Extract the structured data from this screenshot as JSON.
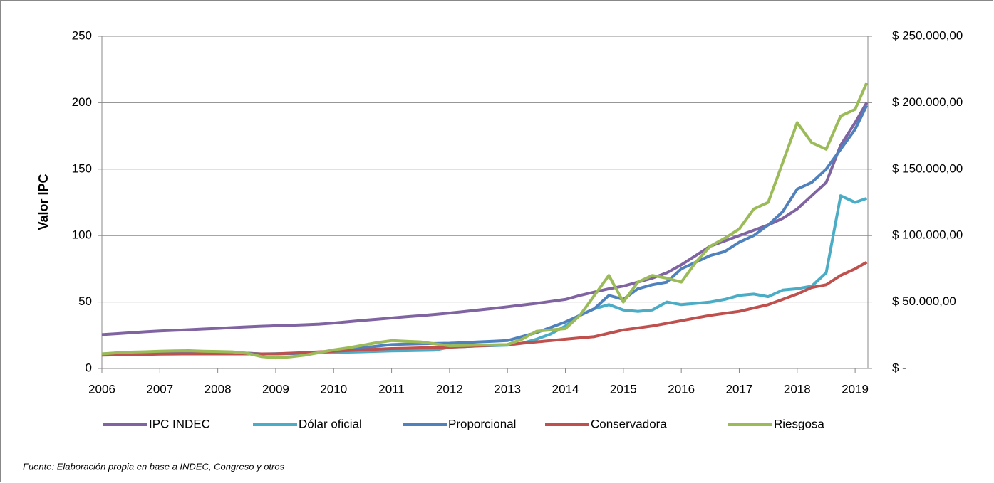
{
  "chart_data": {
    "type": "line",
    "y_label": "Valor IPC",
    "source": "Fuente: Elaboración propia en base a INDEC, Congreso y otros",
    "x": [
      2006,
      2006.25,
      2006.5,
      2006.75,
      2007,
      2007.25,
      2007.5,
      2007.75,
      2008,
      2008.25,
      2008.5,
      2008.75,
      2009,
      2009.25,
      2009.5,
      2009.75,
      2010,
      2010.25,
      2010.5,
      2010.75,
      2011,
      2011.25,
      2011.5,
      2011.75,
      2012,
      2012.25,
      2012.5,
      2012.75,
      2013,
      2013.25,
      2013.5,
      2013.75,
      2014,
      2014.25,
      2014.5,
      2014.75,
      2015,
      2015.25,
      2015.5,
      2015.75,
      2016,
      2016.25,
      2016.5,
      2016.75,
      2017,
      2017.25,
      2017.5,
      2017.75,
      2018,
      2018.25,
      2018.5,
      2018.75,
      2019,
      2019.2
    ],
    "series": [
      {
        "name": "IPC INDEC",
        "color": "#8064a2",
        "values": [
          25.5,
          26.2,
          26.9,
          27.6,
          28.2,
          28.7,
          29.2,
          29.7,
          30.2,
          30.8,
          31.3,
          31.8,
          32.2,
          32.5,
          32.9,
          33.4,
          34.2,
          35.2,
          36.2,
          37.1,
          38,
          38.9,
          39.8,
          40.7,
          41.7,
          42.8,
          44,
          45.2,
          46.4,
          47.7,
          49,
          50.5,
          52,
          55,
          57.5,
          60,
          62,
          65,
          68,
          72,
          78,
          85,
          92,
          96,
          100,
          104,
          108,
          113,
          120,
          130,
          140,
          168,
          185,
          200
        ]
      },
      {
        "name": "Dólar oficial",
        "color": "#4bacc6",
        "axis": "y2",
        "values": [
          11000,
          11200,
          11300,
          11400,
          11500,
          11600,
          11700,
          11800,
          11900,
          12000,
          11500,
          11000,
          11200,
          11400,
          11600,
          11800,
          12000,
          12300,
          12600,
          12900,
          13200,
          13400,
          13600,
          13800,
          16000,
          16500,
          17000,
          17200,
          17500,
          19000,
          22000,
          26000,
          32000,
          40000,
          45000,
          48000,
          44000,
          43000,
          44000,
          50000,
          48000,
          49000,
          50000,
          52000,
          55000,
          56000,
          54000,
          59000,
          60000,
          62000,
          72000,
          130000,
          125000,
          128000
        ]
      },
      {
        "name": "Proporcional",
        "color": "#4f81bd",
        "axis": "y2",
        "values": [
          11000,
          11300,
          11600,
          11800,
          12000,
          12200,
          12300,
          12400,
          12000,
          11800,
          11500,
          11000,
          11000,
          11200,
          11500,
          12200,
          13000,
          14000,
          15500,
          16800,
          18000,
          18300,
          18600,
          18800,
          19000,
          19500,
          20000,
          20500,
          21000,
          24000,
          27000,
          31000,
          35000,
          40000,
          45000,
          55000,
          52000,
          60000,
          63000,
          65000,
          75000,
          80000,
          85000,
          88000,
          95000,
          100000,
          108000,
          118000,
          135000,
          140000,
          150000,
          165000,
          180000,
          198000
        ]
      },
      {
        "name": "Conservadora",
        "color": "#c0504d",
        "axis": "y2",
        "values": [
          10000,
          10200,
          10400,
          10600,
          10800,
          10900,
          11000,
          11000,
          11000,
          11000,
          11000,
          11000,
          11000,
          11500,
          12000,
          12500,
          13000,
          13500,
          14000,
          14500,
          15000,
          15200,
          15500,
          15800,
          16000,
          16500,
          17000,
          17500,
          18000,
          19000,
          20000,
          21000,
          22000,
          23000,
          24000,
          26500,
          29000,
          30500,
          32000,
          34000,
          36000,
          38000,
          40000,
          41500,
          43000,
          45500,
          48000,
          52000,
          56000,
          61000,
          63000,
          70000,
          75000,
          80000
        ]
      },
      {
        "name": "Riesgosa",
        "color": "#9bbb59",
        "axis": "y2",
        "values": [
          11000,
          11800,
          12300,
          12600,
          13000,
          13200,
          13400,
          13000,
          12800,
          12500,
          11500,
          9000,
          8000,
          8800,
          10000,
          12000,
          14000,
          15500,
          17500,
          19500,
          21000,
          20500,
          20000,
          18500,
          17000,
          17300,
          17600,
          17800,
          18000,
          22000,
          28000,
          29000,
          30000,
          40000,
          55000,
          70000,
          50000,
          65000,
          70000,
          68000,
          65000,
          80000,
          92000,
          98000,
          105000,
          120000,
          125000,
          155000,
          185000,
          170000,
          165000,
          190000,
          195000,
          215000
        ]
      }
    ],
    "xlim": [
      2006,
      2019.22
    ],
    "xticks": [
      2006,
      2007,
      2008,
      2009,
      2010,
      2011,
      2012,
      2013,
      2014,
      2015,
      2016,
      2017,
      2018,
      2019
    ],
    "ylim": [
      0,
      250
    ],
    "yticks": [
      0,
      50,
      100,
      150,
      200,
      250
    ],
    "y2lim": [
      0,
      250000
    ],
    "y2ticks": [
      {
        "value": 0,
        "label": "$ -"
      },
      {
        "value": 50000,
        "label": "$ 50.000,00"
      },
      {
        "value": 100000,
        "label": "$ 100.000,00"
      },
      {
        "value": 150000,
        "label": "$ 150.000,00"
      },
      {
        "value": 200000,
        "label": "$ 200.000,00"
      },
      {
        "value": 250000,
        "label": "$ 250.000,00"
      }
    ],
    "grid": true,
    "legend": "bottom"
  }
}
